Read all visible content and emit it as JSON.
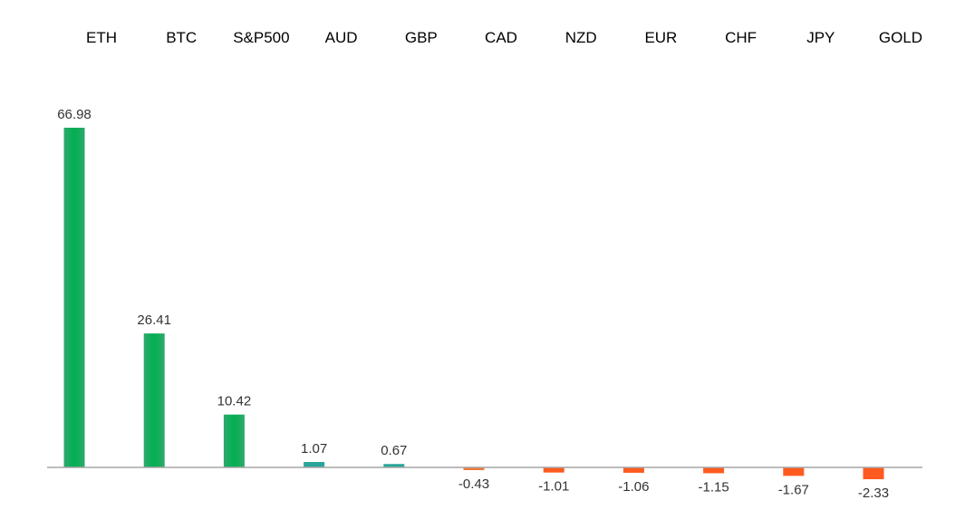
{
  "chart_data": {
    "type": "bar",
    "title": "",
    "xlabel": "",
    "ylabel": "",
    "categories": [
      "ETH",
      "BTC",
      "S&P500",
      "AUD",
      "GBP",
      "CAD",
      "NZD",
      "EUR",
      "CHF",
      "JPY",
      "GOLD"
    ],
    "values": [
      66.98,
      26.41,
      10.42,
      1.07,
      0.67,
      -0.43,
      -1.01,
      -1.06,
      -1.15,
      -1.67,
      -2.33
    ],
    "value_labels": [
      "66.98",
      "26.41",
      "10.42",
      "1.07",
      "0.67",
      "-0.43",
      "-1.01",
      "-1.06",
      "-1.15",
      "-1.67",
      "-2.33"
    ],
    "ylim": [
      -3,
      75
    ],
    "grid": false,
    "legend": "none",
    "category_labels_position": "top",
    "colors": {
      "positive": "#00b050",
      "small_positive": "#2aa59a",
      "negative": "#ff5a1f",
      "small_negative": "#f07838",
      "axis": "#a6a6a6"
    }
  }
}
